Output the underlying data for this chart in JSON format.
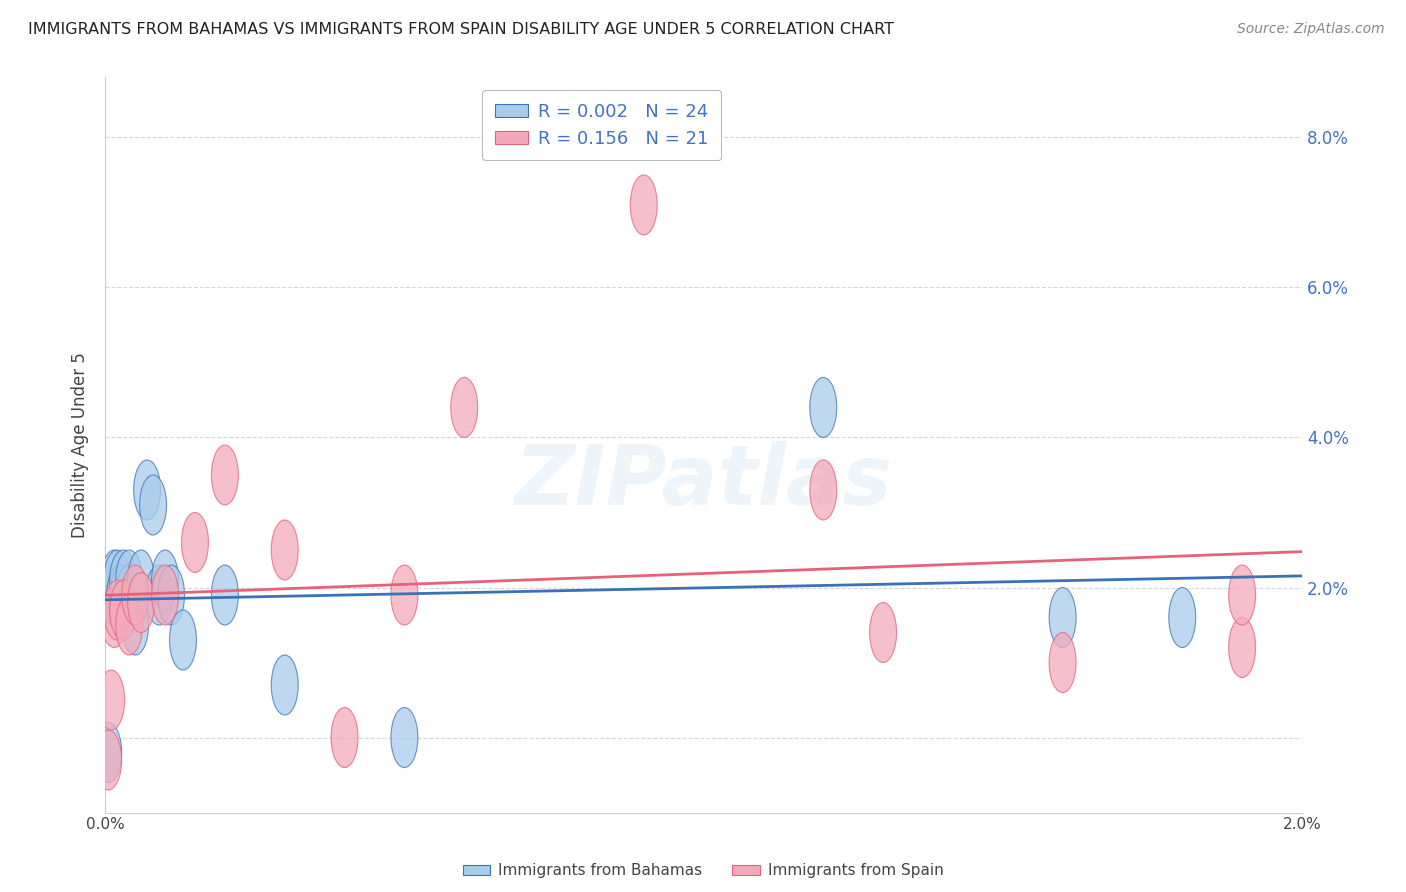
{
  "title": "IMMIGRANTS FROM BAHAMAS VS IMMIGRANTS FROM SPAIN DISABILITY AGE UNDER 5 CORRELATION CHART",
  "source": "Source: ZipAtlas.com",
  "ylabel": "Disability Age Under 5",
  "xlim": [
    0.0,
    0.02
  ],
  "ylim": [
    -0.01,
    0.088
  ],
  "yticks": [
    0.0,
    0.02,
    0.04,
    0.06,
    0.08
  ],
  "ytick_labels": [
    "",
    "2.0%",
    "4.0%",
    "6.0%",
    "8.0%"
  ],
  "xticks": [
    0.0,
    0.005,
    0.01,
    0.015,
    0.02
  ],
  "xtick_labels": [
    "0.0%",
    "",
    "",
    "",
    "2.0%"
  ],
  "R_bahamas": 0.002,
  "N_bahamas": 24,
  "R_spain": 0.156,
  "N_spain": 21,
  "bahamas_color": "#A8CCEA",
  "spain_color": "#F2AABB",
  "bahamas_line_color": "#3A72B8",
  "spain_line_color": "#E8607A",
  "watermark": "ZIPatlas",
  "grid_color": "#CCCCCC",
  "bahamas_x": [
    5e-05,
    0.0001,
    0.00015,
    0.00015,
    0.0002,
    0.00025,
    0.0003,
    0.0004,
    0.0004,
    0.0005,
    0.0005,
    0.0006,
    0.0007,
    0.0008,
    0.001,
    0.001,
    0.0012,
    0.0013,
    0.002,
    0.0035,
    0.005,
    0.005,
    0.012,
    0.016
  ],
  "bahamas_y": [
    -0.002,
    0.019,
    0.019,
    0.021,
    0.021,
    0.018,
    0.019,
    0.019,
    0.019,
    0.021,
    0.014,
    0.021,
    0.033,
    0.031,
    0.021,
    0.019,
    0.015,
    0.013,
    0.019,
    0.009,
    0.0,
    0.019,
    0.044,
    0.016
  ],
  "spain_x": [
    5e-05,
    0.0001,
    0.00015,
    0.0002,
    0.0003,
    0.0003,
    0.0005,
    0.0006,
    0.0008,
    0.001,
    0.0015,
    0.002,
    0.003,
    0.004,
    0.005,
    0.006,
    0.009,
    0.012,
    0.013,
    0.016,
    0.019
  ],
  "spain_y": [
    -0.003,
    0.005,
    0.016,
    0.017,
    0.017,
    0.015,
    0.019,
    0.017,
    0.025,
    0.019,
    0.026,
    0.035,
    0.031,
    0.0,
    0.019,
    0.044,
    0.071,
    0.014,
    0.033,
    0.01,
    0.012
  ]
}
